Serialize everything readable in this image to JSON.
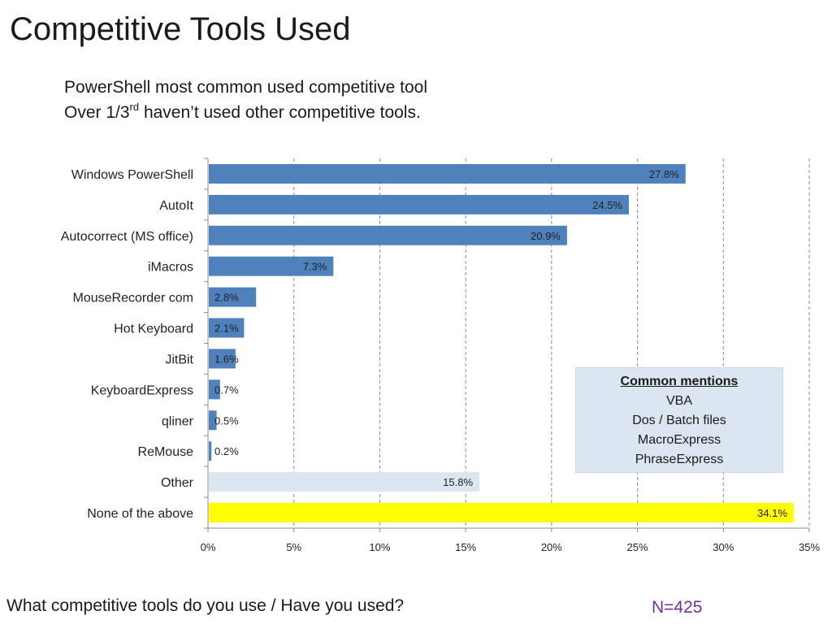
{
  "title": "Competitive Tools Used",
  "subtitle": {
    "line1": "PowerShell most common used competitive tool",
    "line2_pre": "Over 1/3",
    "line2_sup": "rd",
    "line2_post": " haven’t used other competitive tools."
  },
  "chart_data": {
    "type": "bar",
    "orientation": "horizontal",
    "categories": [
      "Windows PowerShell",
      "AutoIt",
      "Autocorrect (MS office)",
      "iMacros",
      "MouseRecorder com",
      "Hot Keyboard",
      "JitBit",
      "KeyboardExpress",
      "qliner",
      "ReMouse",
      "Other",
      "None of the above"
    ],
    "values": [
      27.8,
      24.5,
      20.9,
      7.3,
      2.8,
      2.1,
      1.6,
      0.7,
      0.5,
      0.2,
      15.8,
      34.1
    ],
    "value_labels": [
      "27.8%",
      "24.5%",
      "20.9%",
      "7.3%",
      "2.8%",
      "2.1%",
      "1.6%",
      "0.7%",
      "0.5%",
      "0.2%",
      "15.8%",
      "34.1%"
    ],
    "bar_colors": [
      "#4f81bd",
      "#4f81bd",
      "#4f81bd",
      "#4f81bd",
      "#4f81bd",
      "#4f81bd",
      "#4f81bd",
      "#4f81bd",
      "#4f81bd",
      "#4f81bd",
      "#dce6f1",
      "#ffff00"
    ],
    "xlim": [
      0,
      35
    ],
    "xticks": [
      0,
      5,
      10,
      15,
      20,
      25,
      30,
      35
    ],
    "xtick_labels": [
      "0%",
      "5%",
      "10%",
      "15%",
      "20%",
      "25%",
      "30%",
      "35%"
    ],
    "grid": "vertical dashed",
    "title": "",
    "xlabel": "",
    "ylabel": ""
  },
  "mentions": {
    "title": "Common mentions",
    "items": [
      "VBA",
      "Dos / Batch files",
      "MacroExpress",
      "PhraseExpress"
    ]
  },
  "question": "What competitive tools do you use / Have you used?",
  "sample_size": "N=425"
}
